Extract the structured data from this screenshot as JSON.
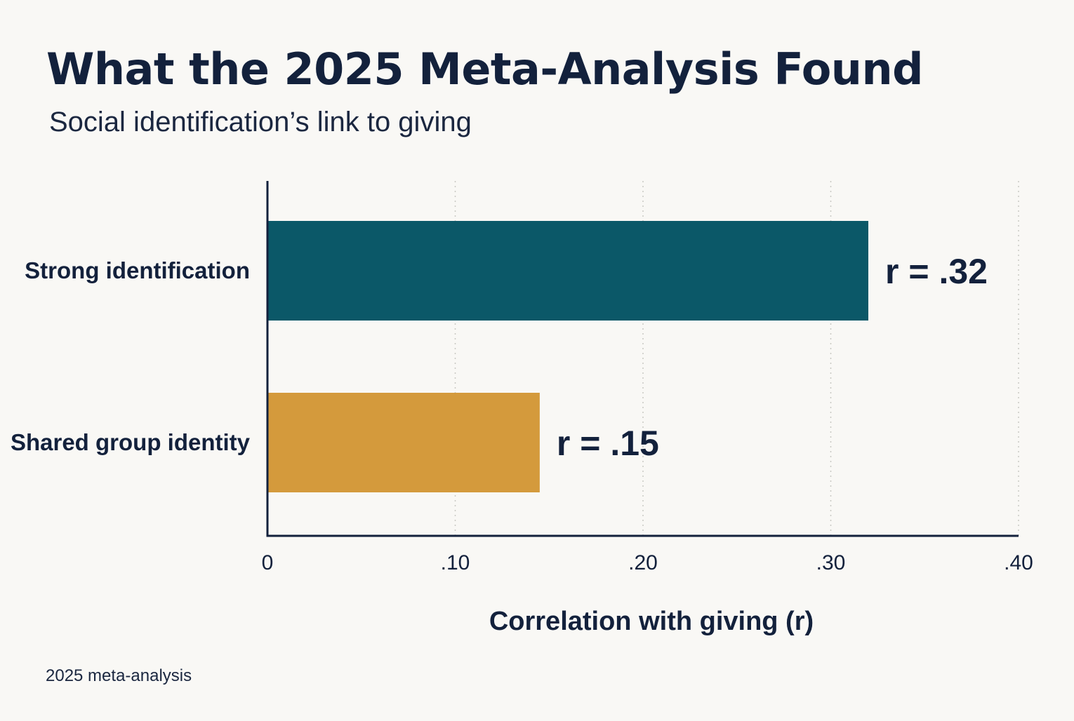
{
  "chart_data": {
    "type": "bar",
    "orientation": "horizontal",
    "title": "What the 2025 Meta-Analysis Found",
    "subtitle": "Social identification’s link to giving",
    "categories": [
      "Strong identification",
      "Shared group identity"
    ],
    "values": [
      0.32,
      0.145
    ],
    "data_labels": [
      "r = .32",
      "r = .15"
    ],
    "bar_colors": [
      "#0b5868",
      "#d49a3c"
    ],
    "xlabel": "Correlation with giving (r)",
    "ylabel": "",
    "xlim": [
      0,
      0.4
    ],
    "x_ticks": [
      0,
      0.1,
      0.2,
      0.3,
      0.4
    ],
    "x_tick_labels": [
      "0",
      ".10",
      ".20",
      ".30",
      ".40"
    ],
    "grid": "vertical dotted",
    "legend": "none",
    "footnote": "2025 meta-analysis"
  }
}
